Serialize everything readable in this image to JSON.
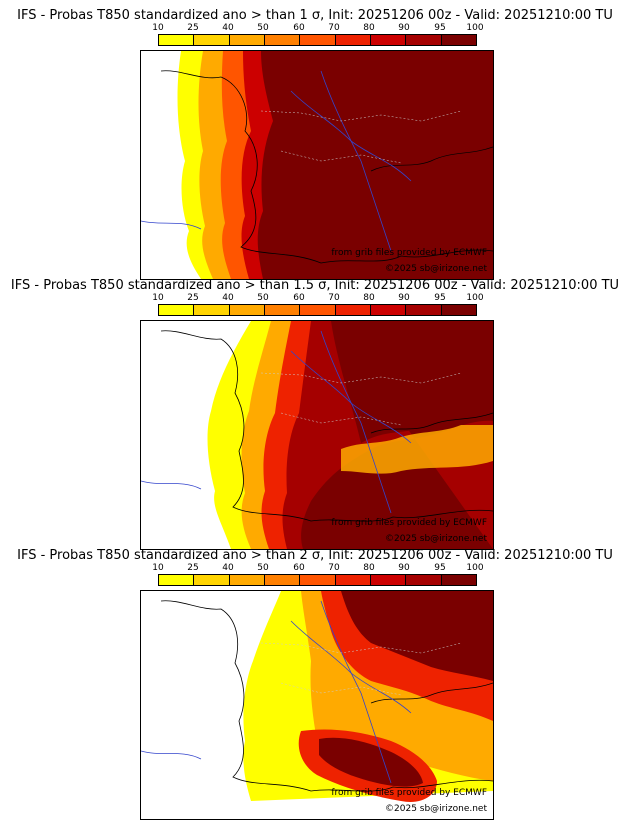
{
  "panels": [
    {
      "title": "IFS - Probas T850  standardized ano > than 1 σ, Init: 20251206 00z - Valid: 20251210:00 TU",
      "level": "1 σ"
    },
    {
      "title": "IFS - Probas T850  standardized ano > than 1.5 σ, Init: 20251206 00z - Valid: 20251210:00 TU",
      "level": "1.5 σ"
    },
    {
      "title": "IFS - Probas T850  standardized ano > than 2 σ, Init: 20251206 00z - Valid: 20251210:00 TU",
      "level": "2 σ"
    }
  ],
  "colorbar": {
    "labels": [
      "10",
      "25",
      "40",
      "50",
      "60",
      "70",
      "80",
      "90",
      "95",
      "100"
    ],
    "colors": [
      "#ffff00",
      "#ffd400",
      "#ffaa00",
      "#ff8000",
      "#ff5500",
      "#ee2200",
      "#cc0000",
      "#a50000",
      "#7a0000"
    ]
  },
  "credits": {
    "source": "from grib files provided by ECMWF",
    "copyright": "©2025 sb@irizone.net"
  },
  "colors": {
    "coast": "#000000",
    "rivers": "#3344cc",
    "borders": "#cccccc",
    "sea": "#ffffff"
  }
}
